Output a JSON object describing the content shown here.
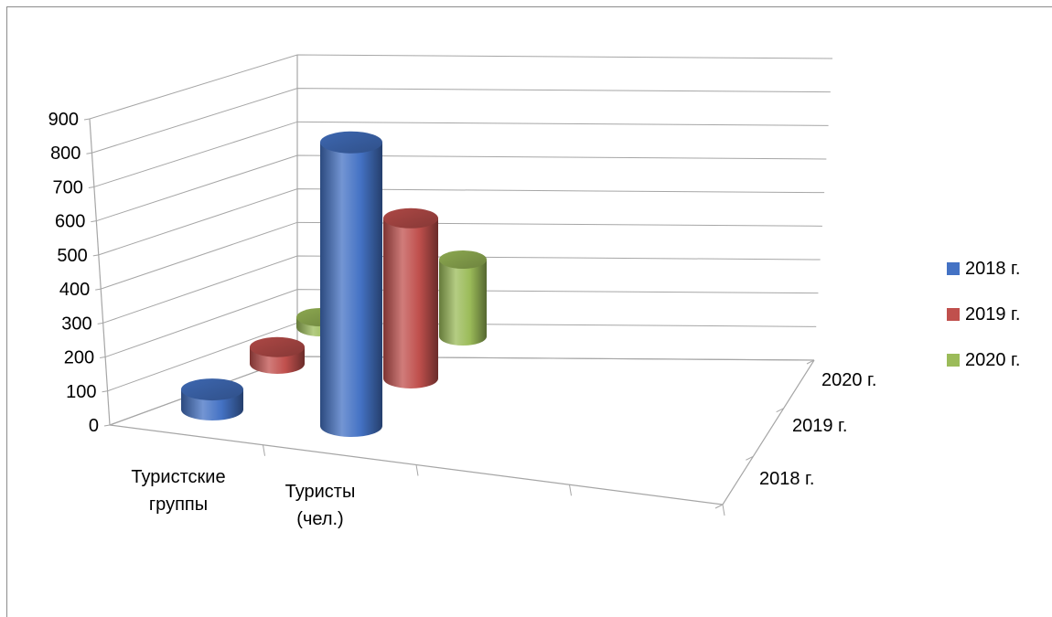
{
  "chart_data": {
    "type": "bar",
    "bar_shape": "cylinder-3d",
    "categories": [
      "Туристские группы",
      "Туристы (чел.)"
    ],
    "category_label_lines": [
      [
        "Туристские",
        "группы"
      ],
      [
        "Туристы",
        "(чел.)"
      ]
    ],
    "series": [
      {
        "name": "2018 г.",
        "values": [
          60,
          850
        ],
        "color": "#4472c4"
      },
      {
        "name": "2019 г.",
        "values": [
          50,
          480
        ],
        "color": "#c0504d"
      },
      {
        "name": "2020 г.",
        "values": [
          30,
          230
        ],
        "color": "#9bbb59"
      }
    ],
    "depth_labels": [
      "2018 г.",
      "2019 г.",
      "2020 г."
    ],
    "y_ticks": [
      0,
      100,
      200,
      300,
      400,
      500,
      600,
      700,
      800,
      900
    ],
    "ylim": [
      0,
      900
    ],
    "grid": true,
    "legend_position": "right"
  }
}
